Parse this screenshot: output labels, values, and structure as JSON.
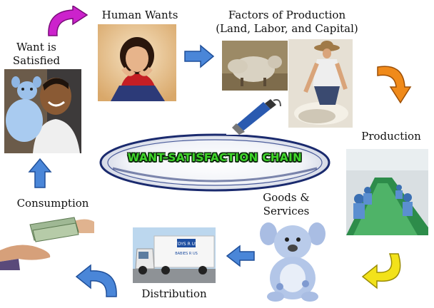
{
  "center": {
    "title": "WANT-SATISFACTION CHAIN"
  },
  "stages": {
    "human_wants": "Human Wants",
    "factors_line1": "Factors of Production",
    "factors_line2": "(Land, Labor, and Capital)",
    "production": "Production",
    "goods_line1": "Goods &",
    "goods_line2": "Services",
    "distribution": "Distribution",
    "consumption": "Consumption",
    "want_line1": "Want is",
    "want_line2": "Satisfied"
  },
  "arrow_colors": {
    "magenta": "#cc22cc",
    "blue": "#4a86d8",
    "orange": "#f08a1a",
    "yellow": "#f2e21a"
  },
  "truck_sign": {
    "brand": "TOYS R US",
    "sub": "BABIES R US"
  }
}
